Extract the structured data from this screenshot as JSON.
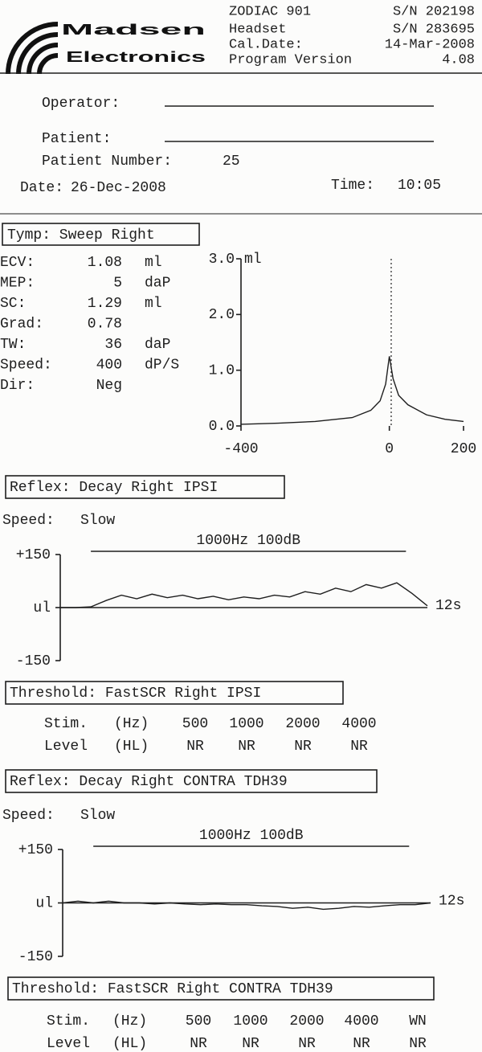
{
  "header": {
    "brand_top": "Madsen",
    "brand_bottom": "Electronics",
    "lines": [
      [
        "ZODIAC 901",
        "S/N 202198"
      ],
      [
        "Headset",
        "S/N 283695"
      ],
      [
        "Cal.Date:",
        "14-Mar-2008"
      ],
      [
        "Program Version",
        "4.08"
      ]
    ]
  },
  "patient": {
    "operator_label": "Operator:",
    "patient_label": "Patient:",
    "number_label": "Patient Number:",
    "number": 25,
    "date_label": "Date:",
    "date": "26-Dec-2008",
    "time_label": "Time:",
    "time": "10:05"
  },
  "tymp": {
    "title": "Tymp: Sweep Right",
    "measures": [
      {
        "label": "ECV:",
        "value": 1.08,
        "unit": "ml"
      },
      {
        "label": "MEP:",
        "value": 5,
        "unit": "daP"
      },
      {
        "label": "SC:",
        "value": 1.29,
        "unit": "ml"
      },
      {
        "label": "Grad:",
        "value": 0.78
      },
      {
        "label": "TW:",
        "value": 36,
        "unit": "daP"
      },
      {
        "label": "Speed:",
        "value": 400,
        "unit": "dP/S"
      },
      {
        "label": "Dir:",
        "value": "Neg"
      }
    ],
    "chart": {
      "type": "line",
      "x": [
        -400,
        -300,
        -200,
        -100,
        -50,
        -25,
        -10,
        0,
        10,
        25,
        50,
        100,
        150,
        200
      ],
      "values": [
        0.03,
        0.05,
        0.08,
        0.15,
        0.28,
        0.45,
        0.75,
        1.25,
        0.85,
        0.55,
        0.38,
        0.2,
        0.12,
        0.08
      ],
      "xlim": [
        -400,
        200
      ],
      "ylim": [
        0,
        3
      ],
      "xticks": [
        -400,
        0,
        200
      ],
      "yticks": [
        {
          "value": 0,
          "label": "0.0"
        },
        {
          "value": 1,
          "label": "1.0"
        },
        {
          "value": 2,
          "label": "2.0"
        },
        {
          "value": 3,
          "label": "3.0"
        }
      ],
      "y_unit": "ml"
    }
  },
  "reflex_ipsi": {
    "title": "Reflex: Decay Right IPSI",
    "speed_label": "Speed:",
    "speed": "Slow",
    "chart": {
      "type": "line",
      "stimulus": "1000Hz 100dB",
      "stimulus_span": [
        1,
        11.3
      ],
      "x": [
        0,
        0.5,
        1,
        1.5,
        2,
        2.5,
        3,
        3.5,
        4,
        4.5,
        5,
        5.5,
        6,
        6.5,
        7,
        7.5,
        8,
        8.5,
        9,
        9.5,
        10,
        10.5,
        11,
        11.5,
        12
      ],
      "values": [
        0,
        0,
        2,
        20,
        35,
        25,
        38,
        28,
        35,
        25,
        32,
        22,
        30,
        25,
        35,
        30,
        45,
        38,
        55,
        45,
        65,
        55,
        70,
        40,
        5
      ],
      "xlim": [
        0,
        12
      ],
      "ylim": [
        -150,
        150
      ],
      "xticks": [
        {
          "value": 12,
          "label": "12s"
        }
      ],
      "yticks": [
        {
          "value": 150,
          "label": "+150"
        },
        {
          "value": 0,
          "label": "ul"
        },
        -150
      ]
    }
  },
  "threshold_ipsi": {
    "title": "Threshold: FastSCR Right IPSI",
    "rows": [
      [
        "Stim.",
        "(Hz)",
        500,
        1000,
        2000,
        4000
      ],
      [
        "Level",
        "(HL)",
        "NR",
        "NR",
        "NR",
        "NR"
      ]
    ]
  },
  "reflex_contra": {
    "title": "Reflex: Decay Right CONTRA TDH39",
    "speed_label": "Speed:",
    "speed": "Slow",
    "chart": {
      "type": "line",
      "stimulus": "1000Hz 100dB",
      "stimulus_span": [
        1,
        11.3
      ],
      "x": [
        0,
        0.5,
        1,
        1.5,
        2,
        2.5,
        3,
        3.5,
        4,
        4.5,
        5,
        5.5,
        6,
        6.5,
        7,
        7.5,
        8,
        8.5,
        9,
        9.5,
        10,
        10.5,
        11,
        11.5,
        12
      ],
      "values": [
        0,
        5,
        0,
        5,
        0,
        0,
        -3,
        0,
        -3,
        -5,
        -3,
        -5,
        -5,
        -8,
        -10,
        -15,
        -12,
        -18,
        -15,
        -10,
        -12,
        -8,
        -5,
        -5,
        0
      ],
      "xlim": [
        0,
        12
      ],
      "ylim": [
        -150,
        150
      ],
      "xticks": [
        {
          "value": 12,
          "label": "12s"
        }
      ],
      "yticks": [
        {
          "value": 150,
          "label": "+150"
        },
        {
          "value": 0,
          "label": "ul"
        },
        -150
      ]
    }
  },
  "threshold_contra": {
    "title": "Threshold: FastSCR Right CONTRA TDH39",
    "rows": [
      [
        "Stim.",
        "(Hz)",
        500,
        1000,
        2000,
        4000,
        "WN"
      ],
      [
        "Level",
        "(HL)",
        "NR",
        "NR",
        "NR",
        "NR",
        "NR"
      ]
    ]
  }
}
